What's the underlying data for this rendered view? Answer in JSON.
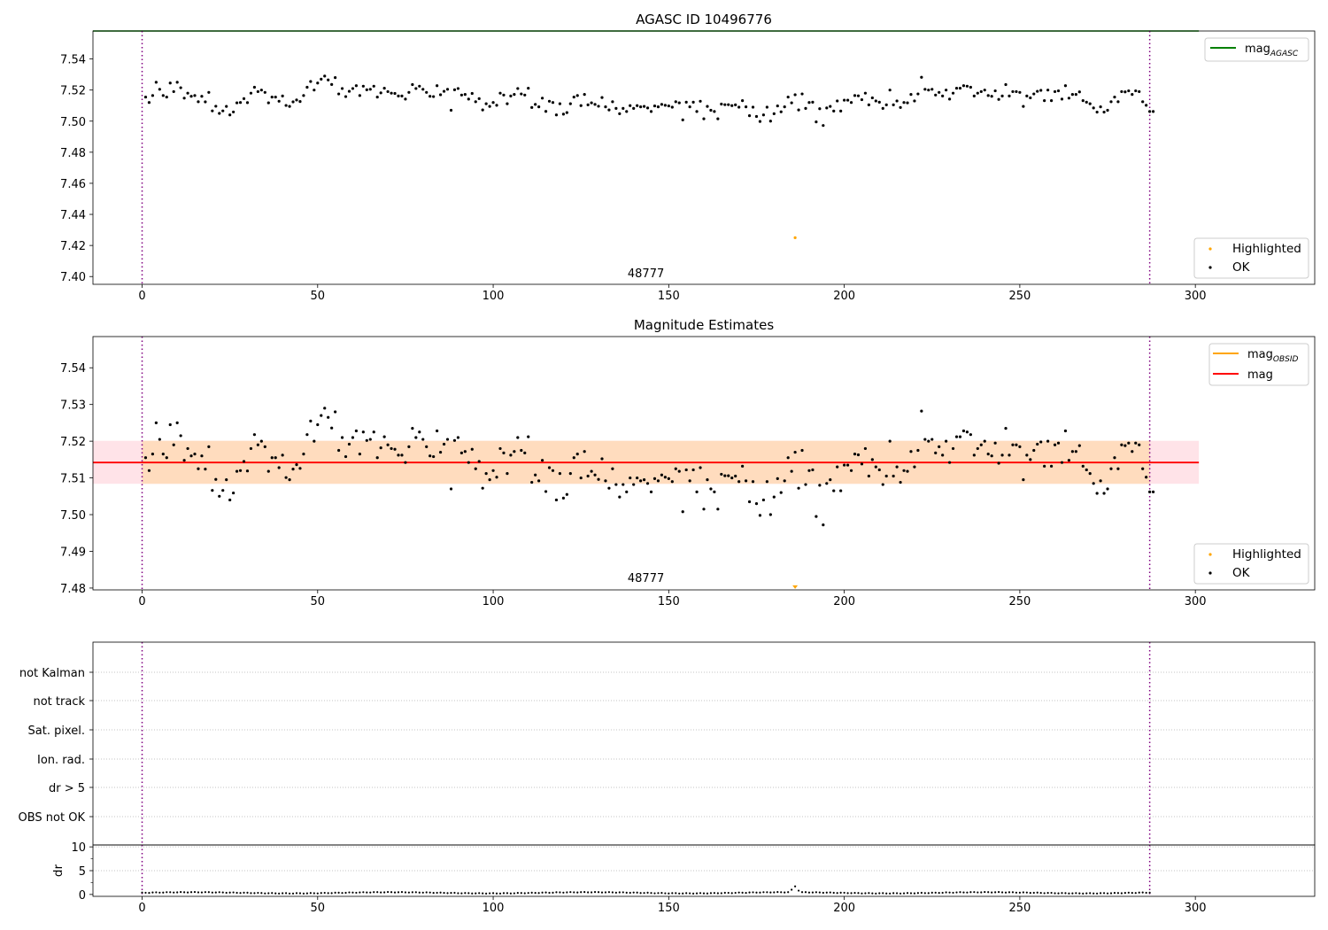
{
  "chart_data": [
    {
      "type": "scatter",
      "title": "AGASC ID 10496776",
      "xlim": [
        -14,
        334
      ],
      "ylim": [
        7.395,
        7.558
      ],
      "xticks": [
        0,
        50,
        100,
        150,
        200,
        250,
        300
      ],
      "yticks": [
        7.4,
        7.42,
        7.44,
        7.46,
        7.48,
        7.5,
        7.52,
        7.54
      ],
      "obsid_label": {
        "text": "48777",
        "x": 143.5,
        "y": 7.4
      },
      "obsid_boundaries": [
        0,
        287
      ],
      "reference_lines": [
        {
          "name": "mag_AGASC",
          "value": 7.558,
          "color": "#008000"
        }
      ],
      "series": [
        {
          "name": "Highlighted",
          "color": "#ffa500",
          "x": [
            186
          ],
          "y": [
            7.425
          ]
        },
        {
          "name": "OK",
          "color": "#000000"
        }
      ],
      "legend": {
        "position": "top-right (lines) / bottom-right (points)"
      }
    },
    {
      "type": "scatter",
      "title": "Magnitude Estimates",
      "xlim": [
        -14,
        334
      ],
      "ylim": [
        7.4795,
        7.5485
      ],
      "xticks": [
        0,
        50,
        100,
        150,
        200,
        250,
        300
      ],
      "yticks": [
        7.48,
        7.49,
        7.5,
        7.51,
        7.52,
        7.53,
        7.54
      ],
      "obsid_label": {
        "text": "48777",
        "x": 143.5,
        "y": 7.48
      },
      "obsid_boundaries": [
        0,
        287
      ],
      "mag_line": {
        "name": "mag",
        "value": 7.5142,
        "color": "#ff0000",
        "x_range": [
          -14,
          301
        ]
      },
      "mag_obsid_line": {
        "name": "mag_OBSID",
        "value": 7.5142,
        "color": "#ffa500",
        "x_range": [
          0,
          287
        ]
      },
      "band_outer": {
        "low": 7.5084,
        "high": 7.5201,
        "x_range": [
          -14,
          301
        ],
        "color": "#ffc0cb"
      },
      "band_inner": {
        "low": 7.5084,
        "high": 7.5201,
        "x_range": [
          0,
          287
        ],
        "color": "#ffdab9"
      },
      "series": [
        {
          "name": "Highlighted",
          "color": "#ffa500",
          "x": [
            186
          ],
          "y": [
            7.48
          ]
        },
        {
          "name": "OK",
          "color": "#000000"
        }
      ]
    },
    {
      "type": "scatter",
      "categories": [
        "not Kalman",
        "not track",
        "Sat. pixel.",
        "Ion. rad.",
        "dr > 5",
        "OBS not OK"
      ],
      "xlim": [
        -14,
        334
      ],
      "xticks": [
        0,
        50,
        100,
        150,
        200,
        250,
        300
      ],
      "obsid_boundaries": [
        0,
        287
      ],
      "flags": []
    },
    {
      "type": "scatter",
      "ylabel": "dr",
      "xlim": [
        -14,
        334
      ],
      "ylim": [
        -0.4,
        10.4
      ],
      "xticks": [
        0,
        50,
        100,
        150,
        200,
        250,
        300
      ],
      "yticks": [
        0,
        5,
        10
      ],
      "obsid_boundaries": [
        0,
        287
      ],
      "dr_values_note_x_start": 0
    }
  ],
  "ok_magnitudes": [
    7.5155,
    7.512,
    7.5165,
    7.525,
    7.5205,
    7.5165,
    7.5155,
    7.5245,
    7.519,
    7.525,
    7.5215,
    7.5148,
    7.518,
    7.516,
    7.5165,
    7.5125,
    7.516,
    7.5124,
    7.5185,
    7.5066,
    7.5096,
    7.505,
    7.5066,
    7.5095,
    7.504,
    7.5059,
    7.5118,
    7.512,
    7.5145,
    7.5119,
    7.518,
    7.5218,
    7.519,
    7.52,
    7.5185,
    7.5118,
    7.5155,
    7.5155,
    7.5128,
    7.5162,
    7.5101,
    7.5095,
    7.5124,
    7.5136,
    7.5126,
    7.5165,
    7.5218,
    7.5255,
    7.52,
    7.5245,
    7.527,
    7.529,
    7.5265,
    7.5236,
    7.528,
    7.5175,
    7.521,
    7.5158,
    7.5192,
    7.521,
    7.5228,
    7.5165,
    7.5225,
    7.5202,
    7.5205,
    7.5225,
    7.5155,
    7.5182,
    7.5212,
    7.519,
    7.518,
    7.5178,
    7.5162,
    7.5162,
    7.5142,
    7.5185,
    7.5235,
    7.521,
    7.5225,
    7.5205,
    7.5185,
    7.516,
    7.5158,
    7.5228,
    7.517,
    7.5192,
    7.5205,
    7.507,
    7.5202,
    7.521,
    7.5168,
    7.5172,
    7.5142,
    7.5178,
    7.5125,
    7.5145,
    7.5072,
    7.5112,
    7.5095,
    7.512,
    7.5102,
    7.518,
    7.5168,
    7.5112,
    7.5162,
    7.5172,
    7.521,
    7.5175,
    7.5168,
    7.5212,
    7.5088,
    7.5108,
    7.5092,
    7.5148,
    7.5063,
    7.5128,
    7.512,
    7.504,
    7.5112,
    7.5045,
    7.5055,
    7.5112,
    7.5155,
    7.5165,
    7.51,
    7.5172,
    7.5105,
    7.5118,
    7.5108,
    7.5096,
    7.5152,
    7.5092,
    7.5072,
    7.5125,
    7.5082,
    7.5048,
    7.5082,
    7.5062,
    7.51,
    7.5082,
    7.51,
    7.5092,
    7.5095,
    7.5085,
    7.5062,
    7.5098,
    7.5092,
    7.5108,
    7.5102,
    7.5098,
    7.509,
    7.5125,
    7.5118,
    7.5008,
    7.5122,
    7.5092,
    7.5122,
    7.5062,
    7.5128,
    7.5015,
    7.5095,
    7.507,
    7.5062,
    7.5015,
    7.511,
    7.5106,
    7.5106,
    7.51,
    7.5105,
    7.509,
    7.5132,
    7.5092,
    7.5035,
    7.509,
    7.503,
    7.4998,
    7.504,
    7.509,
    7.5,
    7.5048,
    7.5098,
    7.506,
    7.5092,
    7.5155,
    7.5118,
    7.517,
    7.5072,
    7.5175,
    7.5082,
    7.512,
    7.5122,
    7.4995,
    7.508,
    7.4972,
    7.5085,
    7.5095,
    7.5065,
    7.513,
    7.5065,
    7.5135,
    7.5135,
    7.512,
    7.5165,
    7.5163,
    7.5138,
    7.518,
    7.5105,
    7.515,
    7.513,
    7.5122,
    7.5082,
    7.5105,
    7.52,
    7.5105,
    7.513,
    7.5088,
    7.512,
    7.5118,
    7.5172,
    7.513,
    7.5175,
    7.5282,
    7.5205,
    7.52,
    7.5205,
    7.5168,
    7.5185,
    7.5162,
    7.52,
    7.5142,
    7.518,
    7.5212,
    7.5212,
    7.5228,
    7.5225,
    7.5218,
    7.5162,
    7.518,
    7.519,
    7.52,
    7.5165,
    7.516,
    7.5195,
    7.514,
    7.5162,
    7.5235,
    7.5162,
    7.519,
    7.519,
    7.5185,
    7.5095,
    7.5162,
    7.515,
    7.5175,
    7.5192,
    7.5198,
    7.5132,
    7.52,
    7.5132,
    7.519,
    7.5195,
    7.5142,
    7.5228,
    7.5148,
    7.5172,
    7.5172,
    7.5188,
    7.5132,
    7.5122,
    7.5112,
    7.5085,
    7.5058,
    7.5092,
    7.5058,
    7.507,
    7.5125,
    7.5155,
    7.5125,
    7.519,
    7.5188,
    7.5195,
    7.5172,
    7.5195,
    7.519,
    7.5125,
    7.5102,
    7.5062,
    7.5062
  ]
}
